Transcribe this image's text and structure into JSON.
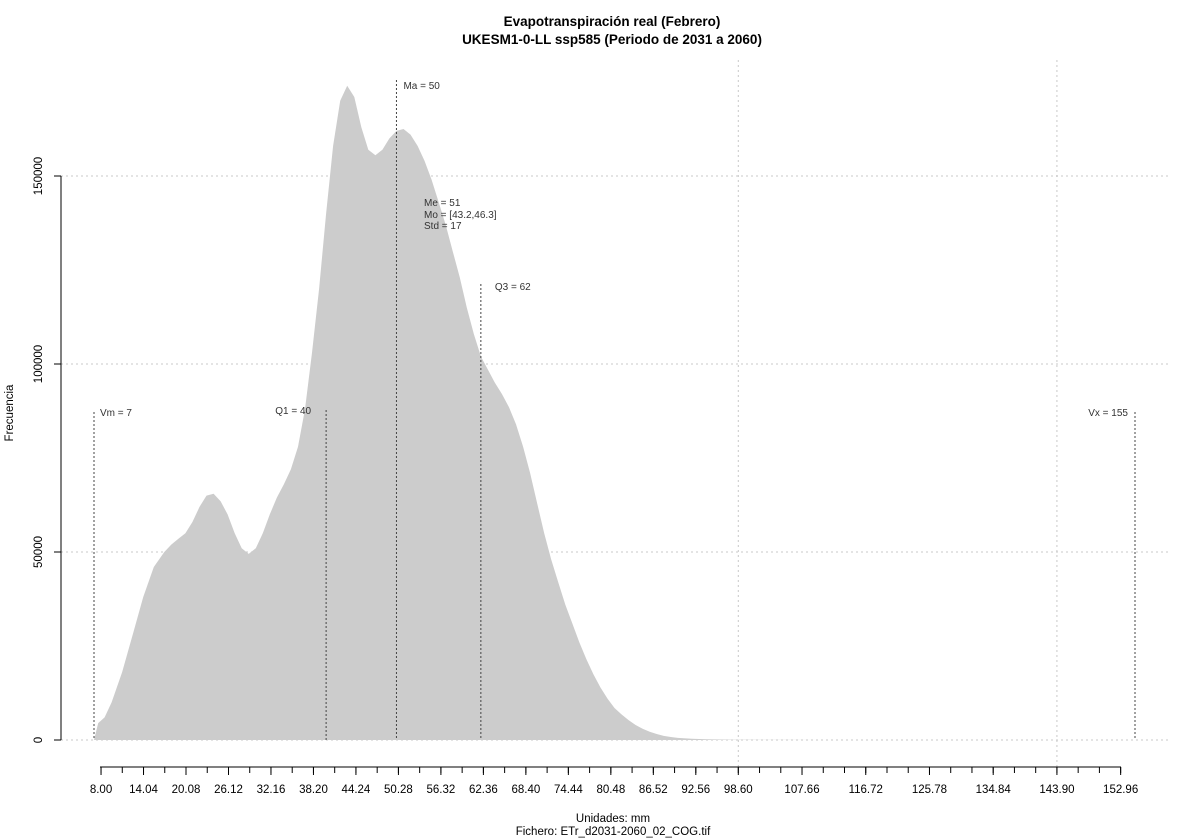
{
  "chart_data": {
    "type": "area",
    "title": "Evapotranspiración real (Febrero)",
    "subtitle": "UKESM1-0-LL ssp585 (Periodo de 2031 a 2060)",
    "xlabel": "Unidades: mm",
    "ylabel": "Frecuencia",
    "caption": "Fichero: ETr_d2031-2060_02_COG.tif",
    "xlim": [
      7,
      155
    ],
    "ylim": [
      0,
      175000
    ],
    "grid": true,
    "fill_color": "#cccccc",
    "x_ticks": [
      "8.00",
      "14.04",
      "20.08",
      "26.12",
      "32.16",
      "38.20",
      "44.24",
      "50.28",
      "56.32",
      "62.36",
      "68.40",
      "74.44",
      "80.48",
      "86.52",
      "92.56",
      "98.60",
      "107.66",
      "116.72",
      "125.78",
      "134.84",
      "143.90",
      "152.96"
    ],
    "y_ticks": [
      "0",
      "50000",
      "100000",
      "150000"
    ],
    "x": [
      7,
      7.6,
      8.5,
      9.5,
      11,
      12.5,
      14,
      15.5,
      17,
      18,
      19,
      20,
      21,
      22,
      23,
      24,
      25,
      26,
      27,
      28,
      29,
      30,
      31,
      32,
      33,
      34,
      35,
      36,
      37,
      38,
      39,
      40,
      41,
      42,
      43,
      44,
      45,
      46,
      47,
      48,
      49,
      50,
      51,
      52,
      53,
      54,
      55,
      56,
      57,
      58,
      59,
      60,
      61,
      62,
      63,
      64,
      65,
      66,
      67,
      68,
      69,
      70,
      71,
      72,
      73,
      74,
      75,
      76,
      77,
      78,
      79,
      80,
      81,
      82,
      83,
      84,
      85,
      86,
      87,
      88,
      89,
      90,
      92,
      94,
      96,
      98,
      100,
      103,
      106,
      110,
      115,
      120,
      130,
      140,
      150,
      155
    ],
    "y": [
      0,
      4500,
      6000,
      10000,
      18000,
      28000,
      38000,
      46000,
      50000,
      52000,
      53500,
      55000,
      58000,
      62000,
      65000,
      65500,
      63500,
      60000,
      55000,
      51000,
      49500,
      51000,
      55000,
      60000,
      64500,
      68000,
      72000,
      78000,
      88000,
      103000,
      120000,
      140000,
      158000,
      170000,
      174000,
      171000,
      163000,
      157000,
      155500,
      157000,
      160000,
      162000,
      162500,
      161000,
      158000,
      154000,
      149000,
      143000,
      137000,
      130000,
      123000,
      115000,
      108000,
      102000,
      98500,
      95000,
      92000,
      88500,
      84000,
      78000,
      71000,
      63000,
      55000,
      48000,
      42000,
      36000,
      31000,
      26000,
      21500,
      17500,
      14000,
      11000,
      8500,
      6800,
      5300,
      4000,
      3000,
      2200,
      1600,
      1100,
      800,
      550,
      350,
      200,
      130,
      80,
      50,
      30,
      15,
      8,
      0,
      0,
      0,
      0,
      0,
      0
    ],
    "annotations": [
      {
        "label": "Vm = 7",
        "x": 7
      },
      {
        "label": "Q1 = 40",
        "x": 40
      },
      {
        "label": "Ma = 50",
        "x": 50
      },
      {
        "label": "Q3 = 62",
        "x": 62
      },
      {
        "label": "Vx = 155",
        "x": 155
      }
    ],
    "stats": {
      "median": "Me = 51",
      "mode": "Mo = [43.2,46.3]",
      "std": "Std = 17"
    }
  }
}
